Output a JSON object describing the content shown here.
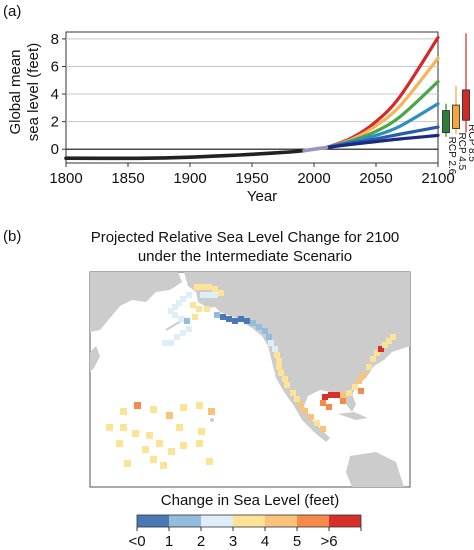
{
  "panel_a_label": "(a)",
  "panel_b_label": "(b)",
  "colors": {
    "historical": "#222222",
    "transition": "#9a94c4",
    "rcp26": "#2e7d3a",
    "rcp45": "#f0a83a",
    "rcp85": "#d42a26",
    "map_land": "#cccccc",
    "map_ocean": "#ffffff"
  },
  "chart_data": [
    {
      "type": "line",
      "xlabel": "Year",
      "ylabel": "Global mean sea level (feet)",
      "xlim": [
        1800,
        2100
      ],
      "ylim": [
        -1,
        8.5
      ],
      "x_ticks": [
        "1800",
        "1850",
        "1900",
        "1950",
        "2000",
        "2050",
        "2100"
      ],
      "y_ticks": [
        "0",
        "2",
        "4",
        "6",
        "8"
      ],
      "zero_line": true,
      "grid": "horizontal",
      "historical": {
        "x": [
          1800,
          1850,
          1880,
          1900,
          1920,
          1940,
          1960,
          1980,
          1992
        ],
        "y": [
          -0.65,
          -0.66,
          -0.63,
          -0.58,
          -0.5,
          -0.42,
          -0.32,
          -0.2,
          -0.1
        ]
      },
      "transition": {
        "x": [
          1992,
          2000,
          2010
        ],
        "y": [
          -0.1,
          0.0,
          0.12
        ]
      },
      "scenarios": [
        {
          "color": "#1a2a80",
          "values": [
            [
              2010,
              0.12
            ],
            [
              2030,
              0.35
            ],
            [
              2050,
              0.55
            ],
            [
              2070,
              0.75
            ],
            [
              2100,
              1.0
            ]
          ]
        },
        {
          "color": "#2a5ba8",
          "values": [
            [
              2010,
              0.12
            ],
            [
              2030,
              0.45
            ],
            [
              2050,
              0.75
            ],
            [
              2070,
              1.1
            ],
            [
              2100,
              1.6
            ]
          ]
        },
        {
          "color": "#2a8fc4",
          "values": [
            [
              2010,
              0.12
            ],
            [
              2030,
              0.55
            ],
            [
              2050,
              1.0
            ],
            [
              2070,
              1.7
            ],
            [
              2100,
              3.3
            ]
          ]
        },
        {
          "color": "#4aa648",
          "values": [
            [
              2010,
              0.12
            ],
            [
              2030,
              0.6
            ],
            [
              2050,
              1.3
            ],
            [
              2070,
              2.4
            ],
            [
              2100,
              4.9
            ]
          ]
        },
        {
          "color": "#f5b45a",
          "values": [
            [
              2010,
              0.12
            ],
            [
              2030,
              0.7
            ],
            [
              2050,
              1.7
            ],
            [
              2070,
              3.2
            ],
            [
              2100,
              6.6
            ]
          ]
        },
        {
          "color": "#d42a26",
          "values": [
            [
              2010,
              0.12
            ],
            [
              2030,
              0.8
            ],
            [
              2050,
              2.0
            ],
            [
              2070,
              3.9
            ],
            [
              2100,
              8.1
            ]
          ]
        }
      ],
      "rcp_boxes": [
        {
          "label": "RCP 2.6",
          "color": "#2e7d3a",
          "low": 1.2,
          "high": 2.8,
          "whisker_low": 0.9,
          "whisker_high": 3.3
        },
        {
          "label": "RCP 4.5",
          "color": "#f0a83a",
          "low": 1.5,
          "high": 3.2,
          "whisker_low": 1.1,
          "whisker_high": 4.6
        },
        {
          "label": "RCP 8.5",
          "color": "#d42a26",
          "low": 2.1,
          "high": 4.3,
          "whisker_low": 1.2,
          "whisker_high": 8.4
        }
      ]
    },
    {
      "type": "heatmap",
      "title": "Projected Relative Sea Level Change for 2100",
      "subtitle": "under the Intermediate Scenario",
      "legend_title": "Change in Sea Level (feet)",
      "legend_labels": [
        "<0",
        "1",
        "2",
        "3",
        "4",
        "5",
        ">6"
      ],
      "legend_colors": [
        "#4a78b5",
        "#93bcde",
        "#ddeef6",
        "#fde396",
        "#fbc27a",
        "#f48b4a",
        "#d7302b"
      ]
    }
  ]
}
